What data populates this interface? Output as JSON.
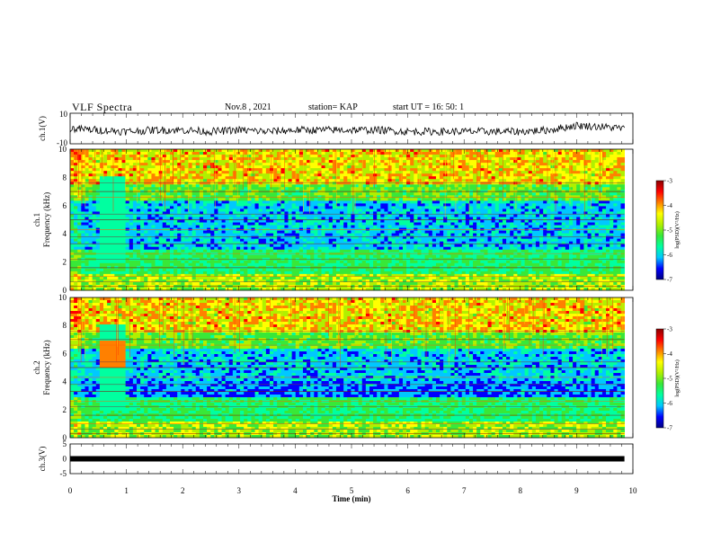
{
  "header": {
    "title": "VLF Spectra",
    "date": "Nov.8 , 2021",
    "station": "station= KAP",
    "start": "start UT = 16: 50: 1"
  },
  "colors": {
    "spectrum_scale": [
      "#000080",
      "#0000ff",
      "#00c8ff",
      "#00ffa0",
      "#38e838",
      "#b0f000",
      "#ffff00",
      "#ff8000",
      "#ff0000",
      "#8b0000"
    ]
  },
  "chart_data": [
    {
      "id": "ch1-waveform",
      "type": "line",
      "ylabel": "ch.1(V)",
      "ylim": [
        -10,
        10
      ],
      "yticks": [
        "10",
        "-10"
      ],
      "xlim": [
        0,
        10
      ],
      "x": [
        0,
        0.5,
        1,
        1.5,
        2,
        2.5,
        3,
        3.5,
        4,
        4.5,
        5,
        5.5,
        6,
        6.5,
        7,
        7.5,
        8,
        8.5,
        9,
        9.5,
        9.85
      ],
      "y": [
        0,
        -1,
        -2,
        -1,
        -1,
        -2,
        -1,
        -2,
        -1,
        -1,
        -1,
        -1,
        -2,
        -2,
        -2,
        -2,
        -2,
        -1,
        2,
        1,
        0
      ]
    },
    {
      "id": "ch1-spectrogram",
      "type": "heatmap",
      "ylabel": "ch.1",
      "ylabel2": "Frequency (kHz)",
      "ylim": [
        0,
        10
      ],
      "yticks": [
        "0",
        "2",
        "4",
        "6",
        "8",
        "10"
      ],
      "xlim": [
        0,
        10
      ],
      "colorbar_label": "log(PSD)(V²/Hz)",
      "colorbar_range": [
        -7,
        -3
      ],
      "colorbar_ticks": [
        "-3",
        "-4",
        "-5",
        "-6",
        "-7"
      ]
    },
    {
      "id": "ch2-spectrogram",
      "type": "heatmap",
      "ylabel": "ch.2",
      "ylabel2": "Frequency (kHz)",
      "ylim": [
        0,
        10
      ],
      "yticks": [
        "0",
        "2",
        "4",
        "6",
        "8",
        "10"
      ],
      "xlim": [
        0,
        10
      ],
      "colorbar_label": "log(PSD)(V²/Hz)",
      "colorbar_range": [
        -7,
        -3
      ],
      "colorbar_ticks": [
        "-3",
        "-4",
        "-5",
        "-6",
        "-7"
      ]
    },
    {
      "id": "ch3-waveform",
      "type": "line",
      "ylabel": "ch.3(V)",
      "ylim": [
        -5,
        5
      ],
      "yticks": [
        "5",
        "0",
        "-5"
      ],
      "xlim": [
        0,
        10
      ],
      "x": [
        0,
        9.85
      ],
      "y": [
        0,
        0
      ]
    }
  ],
  "xaxis": {
    "label": "Time (min)",
    "ticks": [
      "0",
      "1",
      "2",
      "3",
      "4",
      "5",
      "6",
      "7",
      "8",
      "9",
      "10"
    ]
  }
}
